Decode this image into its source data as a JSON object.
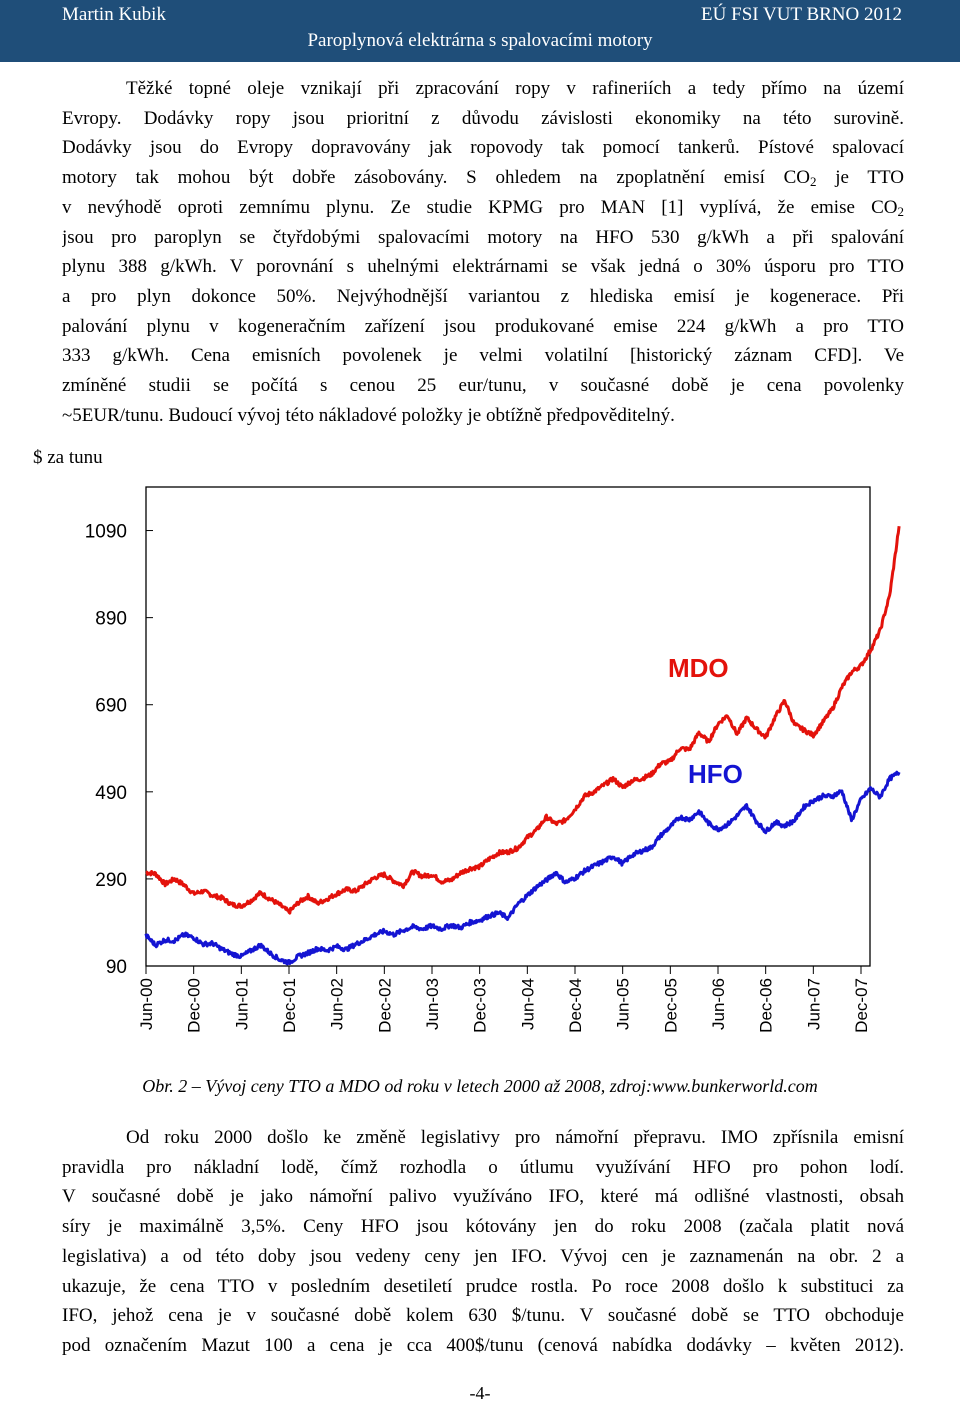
{
  "header": {
    "author": "Martin Kubik",
    "org": "EÚ FSI VUT BRNO 2012",
    "title": "Paroplynová elektrárna s spalovacími motory"
  },
  "paragraph1": {
    "lines": [
      "Těžké topné oleje vznikají při zpracování ropy v rafineriích a tedy přímo na území",
      "Evropy. Dodávky ropy jsou prioritní z důvodu závislosti ekonomiky na této surovině.",
      "Dodávky jsou do Evropy dopravovány jak ropovody tak pomocí tankerů. Pístové spalovací",
      "motory tak mohou být dobře zásobovány. S ohledem na zpoplatnění emisí CO",
      "v nevýhodě oproti zemnímu plynu. Ze studie KPMG pro MAN [1] vyplívá, že emise CO",
      "jsou pro paroplyn se čtyřdobými spalovacími motory na HFO 530 g/kWh a při spalování",
      "plynu 388 g/kWh. V porovnání s uhelnými elektrárnami se však jedná o 30% úsporu pro TTO",
      "a pro plyn dokonce 50%. Nejvýhodnější variantou z hlediska emisí je kogenerace. Při",
      "palování plynu v kogeneračním zařízení jsou produkované emise 224 g/kWh a pro TTO",
      "333 g/kWh. Cena emisních povolenek je velmi volatilní [historický záznam CFD]. Ve",
      "zmíněné studii se počítá s cenou 25 eur/tunu, v současné době je cena povolenky",
      "~5EUR/tunu. Budoucí vývoj této nákladové položky je obtížně předpověditelný."
    ],
    "co2_sub": "2",
    "line4_tail": " je TTO"
  },
  "chart_data": {
    "type": "line",
    "title": "",
    "ylabel": "$ za tunu",
    "xlabel": "",
    "ylim": [
      90,
      1190
    ],
    "yticks": [
      1090,
      890,
      690,
      490,
      290,
      90
    ],
    "categories": [
      "Jun-00",
      "Dec-00",
      "Jun-01",
      "Dec-01",
      "Jun-02",
      "Dec-02",
      "Jun-03",
      "Dec-03",
      "Jun-04",
      "Dec-04",
      "Jun-05",
      "Dec-05",
      "Jun-06",
      "Dec-06",
      "Jun-07",
      "Dec-07"
    ],
    "series": [
      {
        "name": "MDO",
        "color": "#e3120b",
        "x": [
          0,
          0.2,
          0.4,
          0.6,
          0.8,
          1.0,
          1.2,
          1.4,
          1.6,
          1.8,
          2.0,
          2.2,
          2.4,
          2.6,
          2.8,
          3.0,
          3.2,
          3.4,
          3.6,
          3.8,
          4.0,
          4.2,
          4.4,
          4.6,
          4.8,
          5.0,
          5.2,
          5.4,
          5.6,
          5.8,
          6.0,
          6.2,
          6.4,
          6.6,
          6.8,
          7.0,
          7.2,
          7.4,
          7.6,
          7.8,
          8.0,
          8.2,
          8.4,
          8.6,
          8.8,
          9.0,
          9.2,
          9.4,
          9.6,
          9.8,
          10.0,
          10.2,
          10.4,
          10.6,
          10.8,
          11.0,
          11.2,
          11.4,
          11.6,
          11.8,
          12.0,
          12.2,
          12.4,
          12.6,
          12.8,
          13.0,
          13.2,
          13.4,
          13.6,
          13.8,
          14.0,
          14.2,
          14.4,
          14.6,
          14.8,
          15.0,
          15.2,
          15.4,
          15.6,
          15.8
        ],
        "values": [
          305,
          302,
          278,
          290,
          276,
          256,
          262,
          252,
          246,
          231,
          228,
          240,
          258,
          244,
          231,
          214,
          236,
          250,
          234,
          244,
          256,
          266,
          262,
          278,
          293,
          300,
          285,
          275,
          307,
          296,
          300,
          284,
          287,
          304,
          314,
          318,
          336,
          350,
          352,
          361,
          385,
          403,
          432,
          416,
          425,
          450,
          480,
          490,
          505,
          520,
          500,
          516,
          520,
          530,
          555,
          560,
          590,
          587,
          626,
          605,
          646,
          666,
          622,
          660,
          635,
          615,
          662,
          700,
          645,
          632,
          620,
          650,
          680,
          730,
          765,
          780,
          815,
          860,
          940,
          1100
        ]
      },
      {
        "name": "HFO",
        "color": "#1414d2",
        "x": [
          0,
          0.2,
          0.4,
          0.6,
          0.8,
          1.0,
          1.2,
          1.4,
          1.6,
          1.8,
          2.0,
          2.2,
          2.4,
          2.6,
          2.8,
          3.0,
          3.2,
          3.4,
          3.6,
          3.8,
          4.0,
          4.2,
          4.4,
          4.6,
          4.8,
          5.0,
          5.2,
          5.4,
          5.6,
          5.8,
          6.0,
          6.2,
          6.4,
          6.6,
          6.8,
          7.0,
          7.2,
          7.4,
          7.6,
          7.8,
          8.0,
          8.2,
          8.4,
          8.6,
          8.8,
          9.0,
          9.2,
          9.4,
          9.6,
          9.8,
          10.0,
          10.2,
          10.4,
          10.6,
          10.8,
          11.0,
          11.2,
          11.4,
          11.6,
          11.8,
          12.0,
          12.2,
          12.4,
          12.6,
          12.8,
          13.0,
          13.2,
          13.4,
          13.6,
          13.8,
          14.0,
          14.2,
          14.4,
          14.6,
          14.8,
          15.0,
          15.2,
          15.4,
          15.6,
          15.8
        ],
        "values": [
          160,
          138,
          150,
          148,
          162,
          155,
          140,
          142,
          128,
          118,
          112,
          125,
          138,
          120,
          105,
          98,
          112,
          120,
          130,
          126,
          135,
          128,
          140,
          150,
          162,
          170,
          162,
          172,
          180,
          175,
          182,
          175,
          184,
          178,
          190,
          195,
          205,
          212,
          200,
          232,
          252,
          272,
          287,
          305,
          282,
          292,
          308,
          320,
          330,
          342,
          325,
          345,
          354,
          362,
          390,
          410,
          432,
          426,
          445,
          418,
          404,
          415,
          435,
          458,
          423,
          399,
          420,
          412,
          424,
          455,
          470,
          480,
          480,
          492,
          425,
          472,
          498,
          478,
          520,
          535
        ]
      }
    ]
  },
  "caption": "Obr. 2 – Vývoj ceny TTO a MDO od roku v letech 2000 až 2008, zdroj:www.bunkerworld.com",
  "paragraph2": {
    "lines": [
      "Od roku 2000 došlo ke změně legislativy pro námořní přepravu. IMO zpřísnila emisní",
      "pravidla pro nákladní lodě, čímž rozhodla o útlumu využívání HFO pro pohon lodí.",
      "V současné době je jako námořní palivo využíváno IFO, které má odlišné vlastnosti, obsah",
      "síry je maximálně 3,5%. Ceny HFO jsou kótovány jen do roku 2008 (začala platit nová",
      "legislativa) a od této doby jsou vedeny ceny jen IFO. Vývoj cen je zaznamenán na obr. 2 a",
      "ukazuje, že cena TTO v posledním desetiletí prudce rostla. Po roce 2008 došlo k substituci za",
      "IFO, jehož cena je v současné době kolem 630 $/tunu. V současné době se TTO obchoduje",
      "pod označením Mazut 100 a cena je cca 400$/tunu (cenová nabídka dodávky – květen 2012)."
    ]
  },
  "page_number": "-4-"
}
